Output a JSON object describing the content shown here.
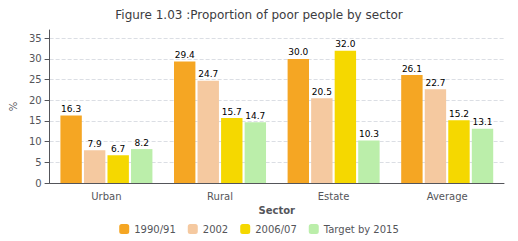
{
  "chart_data": {
    "type": "bar",
    "title": "Figure 1.03 :Proportion of poor people by sector",
    "xlabel": "Sector",
    "ylabel": "%",
    "categories": [
      "Urban",
      "Rural",
      "Estate",
      "Average"
    ],
    "series": [
      {
        "name": "1990/91",
        "color": "#F5A623",
        "values": [
          16.3,
          29.4,
          30.0,
          26.1
        ],
        "value_labels": [
          "16.3",
          "29.4",
          "30.0",
          "26.1"
        ]
      },
      {
        "name": "2002",
        "color": "#F5C9A0",
        "values": [
          7.9,
          24.7,
          20.5,
          22.7
        ],
        "value_labels": [
          "7.9",
          "24.7",
          "20.5",
          "22.7"
        ]
      },
      {
        "name": "2006/07",
        "color": "#F5D800",
        "values": [
          6.7,
          15.7,
          32.0,
          15.2
        ],
        "value_labels": [
          "6.7",
          "15.7",
          "32.0",
          "15.2"
        ]
      },
      {
        "name": "Target by 2015",
        "color": "#BBEEAA",
        "values": [
          8.2,
          14.7,
          10.3,
          13.1
        ],
        "value_labels": [
          "8.2",
          "14.7",
          "10.3",
          "13.1"
        ]
      }
    ],
    "ylim": [
      0,
      37
    ],
    "yticks": [
      0,
      5,
      10,
      15,
      20,
      25,
      30,
      35
    ],
    "grid": true,
    "data_labels": true,
    "legend": "bottom"
  }
}
